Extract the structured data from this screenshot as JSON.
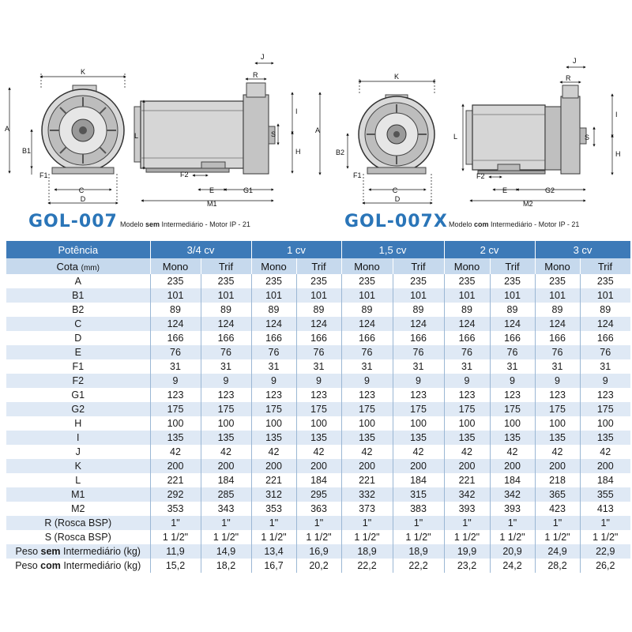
{
  "models": [
    {
      "name": "GOL-007",
      "subtitle_pre": "Modelo ",
      "subtitle_bold": "sem",
      "subtitle_post": " Intermediário - Motor IP - 21"
    },
    {
      "name": "GOL-007X",
      "subtitle_pre": "Modelo ",
      "subtitle_bold": "com",
      "subtitle_post": " Intermediário - Motor IP - 21"
    }
  ],
  "drawing_labels": {
    "left_front": {
      "top": "K",
      "left": "A",
      "mid": "B1",
      "f": "F1",
      "bottom_c": "C",
      "bottom_d": "D"
    },
    "left_side": {
      "j": "J",
      "r": "R",
      "i": "I",
      "s": "S",
      "h": "H",
      "l": "L",
      "f2": "F2",
      "e": "E",
      "g": "G1",
      "m": "M1"
    },
    "right_front": {
      "top": "K",
      "left": "A",
      "mid": "B2",
      "f": "F1",
      "bottom_c": "C",
      "bottom_d": "D"
    },
    "right_side": {
      "j": "J",
      "r": "R",
      "i": "I",
      "s": "S",
      "h": "H",
      "l": "L",
      "f2": "F2",
      "e": "E",
      "g": "G2",
      "m": "M2"
    }
  },
  "table": {
    "power_header": "Potência",
    "powers": [
      "3/4 cv",
      "1 cv",
      "1,5 cv",
      "2 cv",
      "3 cv"
    ],
    "cota_label": "Cota",
    "cota_unit": "(mm)",
    "sub_headers": [
      "Mono",
      "Trif"
    ],
    "rows": [
      {
        "label": "A",
        "values": [
          "235",
          "235",
          "235",
          "235",
          "235",
          "235",
          "235",
          "235",
          "235",
          "235"
        ]
      },
      {
        "label": "B1",
        "values": [
          "101",
          "101",
          "101",
          "101",
          "101",
          "101",
          "101",
          "101",
          "101",
          "101"
        ]
      },
      {
        "label": "B2",
        "values": [
          "89",
          "89",
          "89",
          "89",
          "89",
          "89",
          "89",
          "89",
          "89",
          "89"
        ]
      },
      {
        "label": "C",
        "values": [
          "124",
          "124",
          "124",
          "124",
          "124",
          "124",
          "124",
          "124",
          "124",
          "124"
        ]
      },
      {
        "label": "D",
        "values": [
          "166",
          "166",
          "166",
          "166",
          "166",
          "166",
          "166",
          "166",
          "166",
          "166"
        ]
      },
      {
        "label": "E",
        "values": [
          "76",
          "76",
          "76",
          "76",
          "76",
          "76",
          "76",
          "76",
          "76",
          "76"
        ]
      },
      {
        "label": "F1",
        "values": [
          "31",
          "31",
          "31",
          "31",
          "31",
          "31",
          "31",
          "31",
          "31",
          "31"
        ]
      },
      {
        "label": "F2",
        "values": [
          "9",
          "9",
          "9",
          "9",
          "9",
          "9",
          "9",
          "9",
          "9",
          "9"
        ]
      },
      {
        "label": "G1",
        "values": [
          "123",
          "123",
          "123",
          "123",
          "123",
          "123",
          "123",
          "123",
          "123",
          "123"
        ]
      },
      {
        "label": "G2",
        "values": [
          "175",
          "175",
          "175",
          "175",
          "175",
          "175",
          "175",
          "175",
          "175",
          "175"
        ]
      },
      {
        "label": "H",
        "values": [
          "100",
          "100",
          "100",
          "100",
          "100",
          "100",
          "100",
          "100",
          "100",
          "100"
        ]
      },
      {
        "label": "I",
        "values": [
          "135",
          "135",
          "135",
          "135",
          "135",
          "135",
          "135",
          "135",
          "135",
          "135"
        ]
      },
      {
        "label": "J",
        "values": [
          "42",
          "42",
          "42",
          "42",
          "42",
          "42",
          "42",
          "42",
          "42",
          "42"
        ]
      },
      {
        "label": "K",
        "values": [
          "200",
          "200",
          "200",
          "200",
          "200",
          "200",
          "200",
          "200",
          "200",
          "200"
        ]
      },
      {
        "label": "L",
        "values": [
          "221",
          "184",
          "221",
          "184",
          "221",
          "184",
          "221",
          "184",
          "218",
          "184"
        ]
      },
      {
        "label": "M1",
        "values": [
          "292",
          "285",
          "312",
          "295",
          "332",
          "315",
          "342",
          "342",
          "365",
          "355"
        ]
      },
      {
        "label": "M2",
        "values": [
          "353",
          "343",
          "353",
          "363",
          "373",
          "383",
          "393",
          "393",
          "423",
          "413"
        ]
      },
      {
        "label": "R (Rosca BSP)",
        "values": [
          "1\"",
          "1\"",
          "1\"",
          "1\"",
          "1\"",
          "1\"",
          "1\"",
          "1\"",
          "1\"",
          "1\""
        ]
      },
      {
        "label": "S (Rosca BSP)",
        "values": [
          "1 1/2\"",
          "1 1/2\"",
          "1 1/2\"",
          "1 1/2\"",
          "1 1/2\"",
          "1 1/2\"",
          "1 1/2\"",
          "1 1/2\"",
          "1 1/2\"",
          "1 1/2\""
        ]
      },
      {
        "label_pre": "Peso ",
        "label_bold": "sem",
        "label_post": " Intermediário (kg)",
        "values": [
          "11,9",
          "14,9",
          "13,4",
          "16,9",
          "18,9",
          "18,9",
          "19,9",
          "20,9",
          "24,9",
          "22,9"
        ]
      },
      {
        "label_pre": "Peso ",
        "label_bold": "com",
        "label_post": " Intermediário (kg)",
        "values": [
          "15,2",
          "18,2",
          "16,7",
          "20,2",
          "22,2",
          "22,2",
          "23,2",
          "24,2",
          "28,2",
          "26,2"
        ]
      }
    ]
  },
  "colors": {
    "accent": "#2a75b8",
    "header_bg": "#3d7ab8",
    "subheader_bg": "#c6d9ed",
    "stripe_bg": "#dfe9f5"
  }
}
